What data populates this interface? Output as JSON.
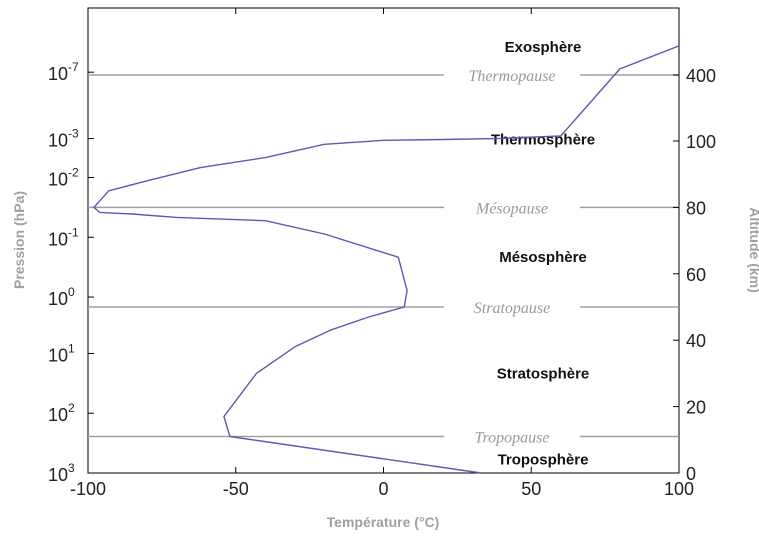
{
  "chart_data": {
    "type": "line",
    "title": "",
    "xlabel": "Température (°C)",
    "ylabel_left": "Pression (hPa)",
    "ylabel_right": "Altitude (km)",
    "xlim": [
      -100,
      100
    ],
    "altitude_lim_km": [
      0,
      500
    ],
    "x_ticks": [
      "-100",
      "-50",
      "0",
      "50",
      "100"
    ],
    "pressure_ticks": [
      {
        "base": "10",
        "exp": "-7",
        "altitude_km": 406
      },
      {
        "base": "10",
        "exp": "-3",
        "altitude_km": 111
      },
      {
        "base": "10",
        "exp": "-2",
        "altitude_km": 89
      },
      {
        "base": "10",
        "exp": "-1",
        "altitude_km": 71
      },
      {
        "base": "10",
        "exp": "0",
        "altitude_km": 53
      },
      {
        "base": "10",
        "exp": "1",
        "altitude_km": 36
      },
      {
        "base": "10",
        "exp": "2",
        "altitude_km": 18
      },
      {
        "base": "10",
        "exp": "3",
        "altitude_km": 0
      }
    ],
    "altitude_ticks": [
      {
        "label": "0",
        "altitude_km": 0
      },
      {
        "label": "20",
        "altitude_km": 20
      },
      {
        "label": "40",
        "altitude_km": 40
      },
      {
        "label": "60",
        "altitude_km": 60
      },
      {
        "label": "80",
        "altitude_km": 80
      },
      {
        "label": "100",
        "altitude_km": 100
      },
      {
        "label": "400",
        "altitude_km": 400
      }
    ],
    "series": [
      {
        "color": "#5a5ab0",
        "points": [
          {
            "temp": 33,
            "alt": 0
          },
          {
            "temp": -52,
            "alt": 11
          },
          {
            "temp": -53,
            "alt": 14
          },
          {
            "temp": -54,
            "alt": 17
          },
          {
            "temp": -43,
            "alt": 30
          },
          {
            "temp": -30,
            "alt": 38
          },
          {
            "temp": -18,
            "alt": 43
          },
          {
            "temp": -5,
            "alt": 47
          },
          {
            "temp": 7,
            "alt": 50
          },
          {
            "temp": 8,
            "alt": 55
          },
          {
            "temp": 5,
            "alt": 65
          },
          {
            "temp": -20,
            "alt": 72
          },
          {
            "temp": -40,
            "alt": 76
          },
          {
            "temp": -70,
            "alt": 77
          },
          {
            "temp": -85,
            "alt": 78
          },
          {
            "temp": -96,
            "alt": 78.5
          },
          {
            "temp": -98,
            "alt": 80
          },
          {
            "temp": -96,
            "alt": 82
          },
          {
            "temp": -93,
            "alt": 85
          },
          {
            "temp": -80,
            "alt": 88
          },
          {
            "temp": -62,
            "alt": 92
          },
          {
            "temp": -40,
            "alt": 95
          },
          {
            "temp": -20,
            "alt": 99
          },
          {
            "temp": 0,
            "alt": 103
          },
          {
            "temp": 20,
            "alt": 107
          },
          {
            "temp": 40,
            "alt": 112
          },
          {
            "temp": 60,
            "alt": 123
          },
          {
            "temp": 80,
            "alt": 413
          },
          {
            "temp": 100,
            "alt": 462
          }
        ]
      }
    ],
    "boundaries": [
      {
        "label": "Thermopause",
        "altitude_km": 400
      },
      {
        "label": "Mésopause",
        "altitude_km": 80
      },
      {
        "label": "Stratopause",
        "altitude_km": 50
      },
      {
        "label": "Tropopause",
        "altitude_km": 11
      }
    ],
    "layers": [
      {
        "label": "Exosphère",
        "altitude_km": 460
      },
      {
        "label": "Thermosphère",
        "altitude_km": 106
      },
      {
        "label": "Mésosphère",
        "altitude_km": 65
      },
      {
        "label": "Stratosphère",
        "altitude_km": 30
      },
      {
        "label": "Troposphère",
        "altitude_km": 4
      }
    ],
    "grid": false,
    "colors": {
      "axis": "#000000",
      "boundary_line": "#a0a0a0",
      "axis_title": "#a0a0a0",
      "curve": "#5a5ab0"
    }
  }
}
